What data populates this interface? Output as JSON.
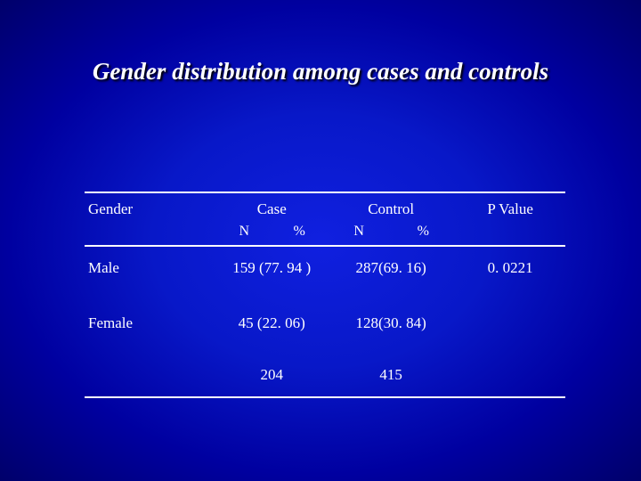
{
  "slide": {
    "title": "Gender distribution among cases and controls",
    "background_gradient": {
      "type": "radial",
      "center_color": "#1020e0",
      "mid_color": "#0000a0",
      "edge_color": "#000060"
    },
    "title_style": {
      "font_family": "Times New Roman",
      "font_size_pt": 20,
      "font_weight": "bold",
      "font_style": "italic",
      "color": "#ffffff",
      "shadow_color": "#000000"
    }
  },
  "table": {
    "type": "table",
    "border_color": "#ffffff",
    "text_color": "#ffffff",
    "font_family": "Times New Roman",
    "font_size_pt": 13,
    "columns": {
      "gender": "Gender",
      "case": "Case",
      "control": "Control",
      "pvalue": "P Value"
    },
    "subcolumns": {
      "case_n": "N",
      "case_pct": "%",
      "control_n": "N",
      "control_pct": "%"
    },
    "rows": [
      {
        "gender": "Male",
        "case": "159 (77. 94 )",
        "control": "287(69. 16)",
        "pvalue": "0. 0221"
      },
      {
        "gender": "Female",
        "case": "45 (22. 06)",
        "control": "128(30. 84)",
        "pvalue": ""
      }
    ],
    "total": {
      "gender": "",
      "case": "204",
      "control": "415",
      "pvalue": ""
    }
  }
}
